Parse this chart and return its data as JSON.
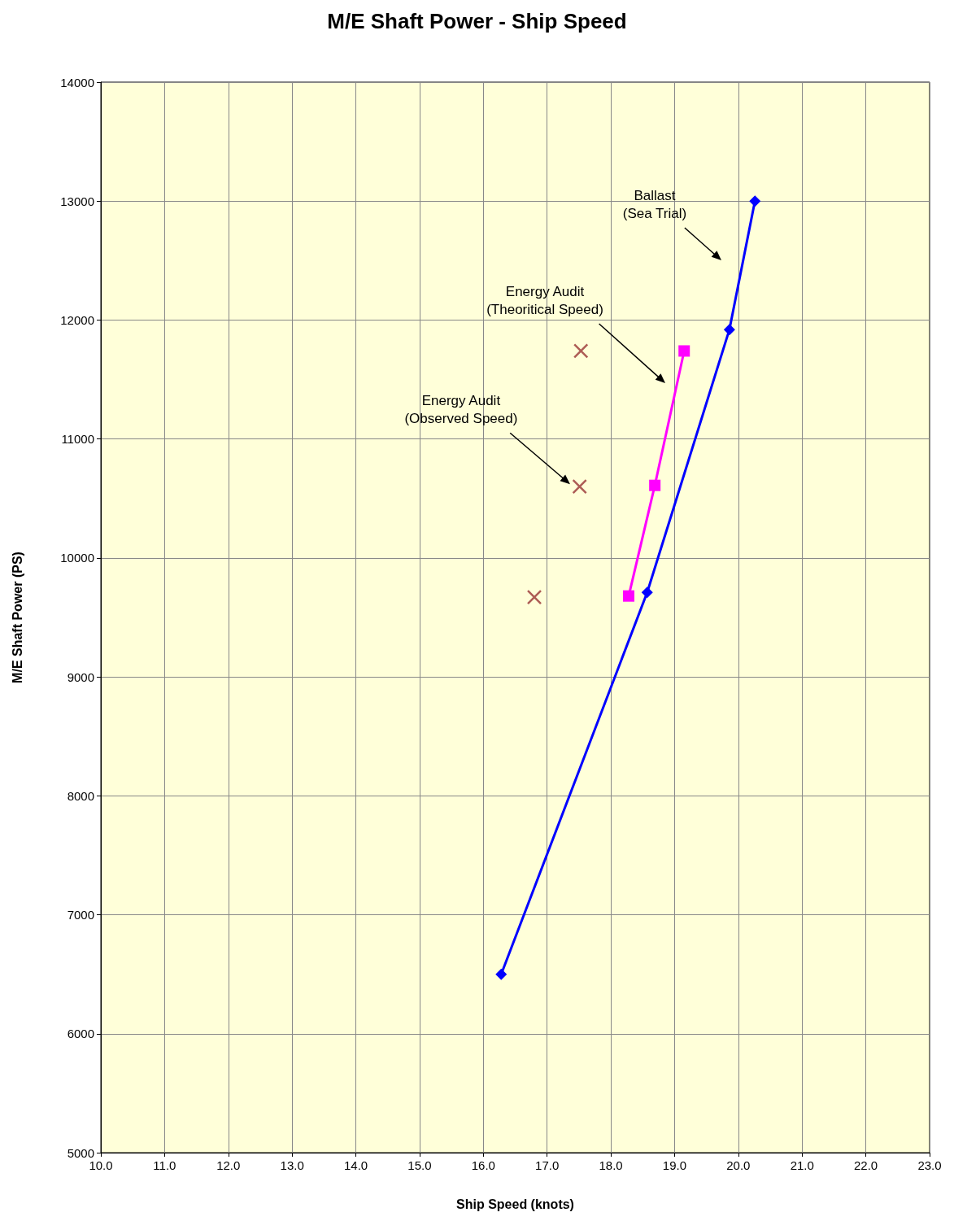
{
  "chart_data": {
    "type": "line",
    "title": "M/E Shaft Power - Ship Speed",
    "xlabel": "Ship Speed (knots)",
    "ylabel": "M/E Shaft Power (PS)",
    "xlim": [
      10,
      23
    ],
    "xticks": [
      {
        "value": 10,
        "label": "10.0"
      },
      {
        "value": 11,
        "label": "11.0"
      },
      {
        "value": 12,
        "label": "12.0"
      },
      {
        "value": 13,
        "label": "13.0"
      },
      {
        "value": 14,
        "label": "14.0"
      },
      {
        "value": 15,
        "label": "15.0"
      },
      {
        "value": 16,
        "label": "16.0"
      },
      {
        "value": 17,
        "label": "17.0"
      },
      {
        "value": 18,
        "label": "18.0"
      },
      {
        "value": 19,
        "label": "19.0"
      },
      {
        "value": 20,
        "label": "20.0"
      },
      {
        "value": 21,
        "label": "21.0"
      },
      {
        "value": 22,
        "label": "22.0"
      },
      {
        "value": 23,
        "label": "23.0"
      }
    ],
    "ylim": [
      5000,
      14000
    ],
    "yticks": [
      5000,
      6000,
      7000,
      8000,
      9000,
      10000,
      11000,
      12000,
      13000,
      14000
    ],
    "grid": true,
    "line_style": "solid",
    "series": [
      {
        "marker": "diamond",
        "color": "#0000ff",
        "x": [
          16.28,
          18.57,
          19.86,
          20.26
        ],
        "values": [
          6500,
          9710,
          11920,
          13000
        ]
      },
      {
        "marker": "square",
        "color": "#ff00ff",
        "x": [
          18.28,
          18.69,
          19.15
        ],
        "values": [
          9680,
          10610,
          11740
        ]
      },
      {
        "type": "scatter",
        "marker": "cross",
        "color": "#993333",
        "x": [
          16.8,
          17.51,
          17.53
        ],
        "values": [
          9670,
          10600,
          11740
        ]
      }
    ],
    "annotations": [
      "Ballast\n(Sea Trial)",
      "Energy Audit\n(Theoritical Speed)",
      {
        "text": "Energy Audit\n(Observed Speed)",
        "x": 17.36,
        "y": 10620
      }
    ]
  }
}
